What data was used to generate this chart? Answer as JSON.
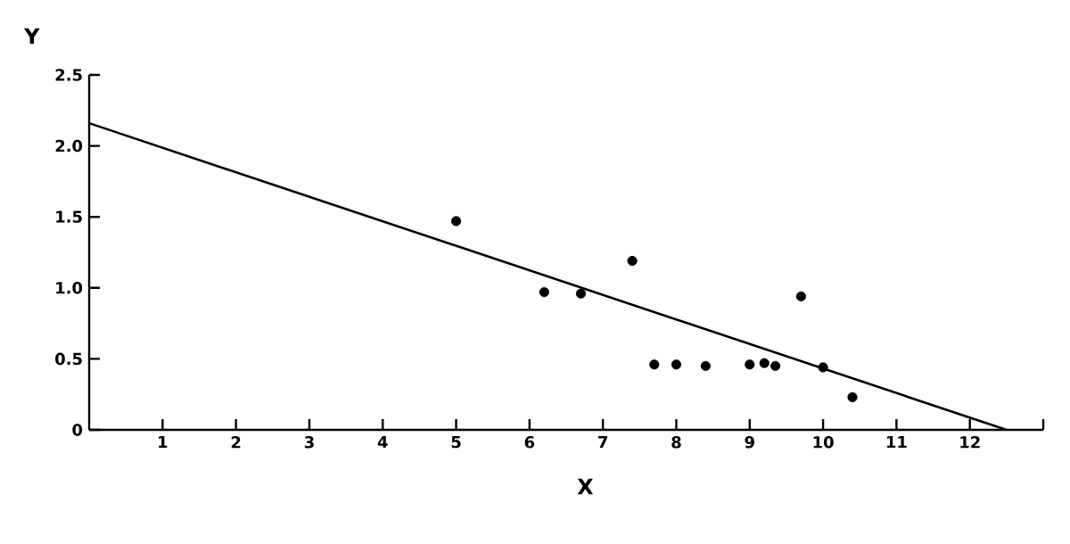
{
  "chart_data": {
    "type": "scatter",
    "xlabel": "X",
    "ylabel": "Y",
    "xlim": [
      0,
      13
    ],
    "ylim": [
      0,
      2.5
    ],
    "xticks": [
      1,
      2,
      3,
      4,
      5,
      6,
      7,
      8,
      9,
      10,
      11,
      12,
      {
        "value": 13,
        "label": null
      }
    ],
    "yticks": [
      0,
      0.5,
      {
        "value": 1,
        "label": "1.0"
      },
      1.5,
      {
        "value": 2,
        "label": "2.0"
      },
      2.5
    ],
    "grid": false,
    "series": [
      {
        "marker": "circle",
        "color": "#000000",
        "x": [
          5.0,
          6.2,
          6.7,
          7.4,
          7.7,
          8.0,
          8.4,
          9.0,
          9.2,
          9.35,
          9.7,
          10.0,
          10.4
        ],
        "values": [
          1.47,
          0.97,
          0.96,
          1.19,
          0.46,
          0.46,
          0.45,
          0.46,
          0.47,
          0.45,
          0.94,
          0.44,
          0.23
        ]
      },
      {
        "type": "line",
        "color": "#000000",
        "line_style": "solid",
        "x": [
          0,
          12.5
        ],
        "values": [
          2.16,
          0
        ]
      }
    ]
  }
}
